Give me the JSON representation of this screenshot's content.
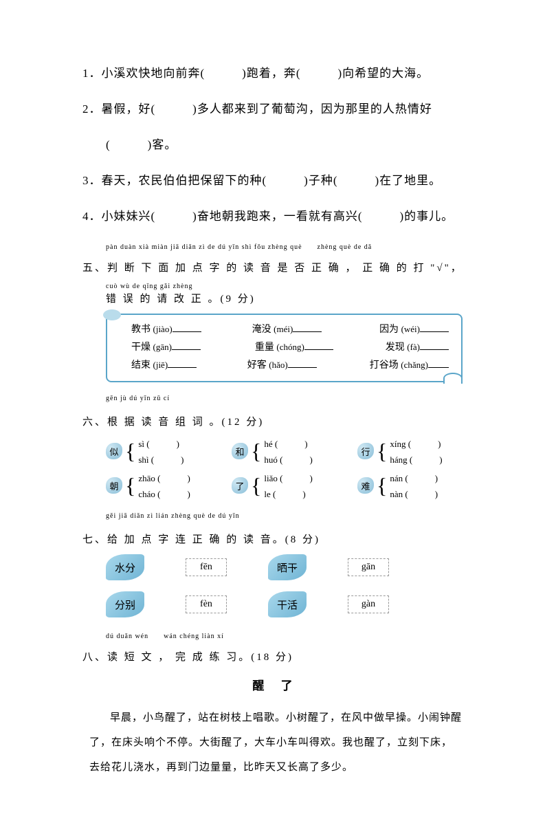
{
  "fill": {
    "q1": "1．小溪欢快地向前奔(　　　)跑着，奔(　　　)向希望的大海。",
    "q2a": "2．暑假，好(　　　)多人都来到了葡萄沟，因为那里的人热情好",
    "q2b": "(　　　)客。",
    "q3": "3．春天，农民伯伯把保留下的种(　　　)子种(　　　)在了地里。",
    "q4": "4．小妹妹兴(　　　)奋地朝我跑来，一看就有高兴(　　　)的事儿。"
  },
  "section5": {
    "pinyin1": "pàn duàn xià miàn jiā diǎn zì de dú yīn shì fǒu zhèng què　　zhèng què de dǎ",
    "line1": "五、判 断 下 面 加 点 字 的 读 音 是 否 正 确 ， 正 确 的 打 \"√\"，",
    "pinyin2": "cuò wù de qǐng gǎi zhèng",
    "line2": "错 误 的 请 改 正 。(9 分)",
    "box": {
      "r1c1_char": "教书",
      "r1c1_py": "(jiào)",
      "r1c2_char": "淹没",
      "r1c2_py": "(méi)",
      "r1c3_char": "因为",
      "r1c3_py": "(wéi)",
      "r2c1_char": "干燥",
      "r2c1_py": "(gān)",
      "r2c2_char": "重量",
      "r2c2_py": "(chóng)",
      "r2c3_char": "发现",
      "r2c3_py": "(fà)",
      "r3c1_char": "结束",
      "r3c1_py": "(jiē)",
      "r3c2_char": "好客",
      "r3c2_py": "(hǎo)",
      "r3c3_char": "打谷场",
      "r3c3_py": "(chǎng)"
    }
  },
  "section6": {
    "pinyin": "gēn jù dú yīn zǔ cí",
    "title": "六、根 据 读 音 组 词 。(12 分)",
    "groups": [
      {
        "char": "似",
        "r1": "sì",
        "r2": "shì"
      },
      {
        "char": "和",
        "r1": "hé",
        "r2": "huó"
      },
      {
        "char": "行",
        "r1": "xíng",
        "r2": "háng"
      },
      {
        "char": "朝",
        "r1": "zhāo",
        "r2": "cháo"
      },
      {
        "char": "了",
        "r1": "liǎo",
        "r2": "le"
      },
      {
        "char": "难",
        "r1": "nán",
        "r2": "nàn"
      }
    ]
  },
  "section7": {
    "pinyin": "gěi jiā diǎn zì lián zhèng què de dú yīn",
    "title": "七、给 加 点 字 连 正 确 的 读 音。(8 分)",
    "items": [
      {
        "word": "水分",
        "py": "fēn"
      },
      {
        "word": "晒干",
        "py": "gān"
      },
      {
        "word": "分别",
        "py": "fèn"
      },
      {
        "word": "干活",
        "py": "gàn"
      }
    ]
  },
  "section8": {
    "pinyin": "dú duǎn wén　　wán chéng liàn xí",
    "title": "八、读 短 文 ， 完 成 练 习。(18 分)",
    "passage_title": "醒  了",
    "passage": "早晨，小鸟醒了，站在树枝上唱歌。小树醒了，在风中做早操。小闹钟醒了，在床头响个不停。大街醒了，大车小车叫得欢。我也醒了，立刻下床，去给花儿浇水，再到门边量量，比昨天又长高了多少。"
  }
}
